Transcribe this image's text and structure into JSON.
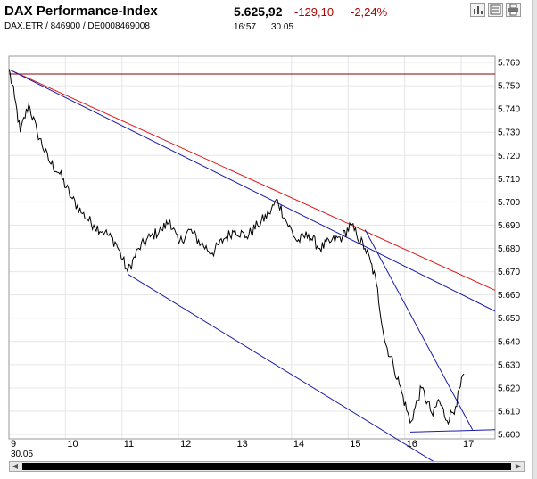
{
  "header": {
    "title": "DAX Performance-Index",
    "subline": "DAX.ETR  /  846900  /  DE0008469008",
    "price": "5.625,92",
    "change": "-129,10",
    "change_pct": "-2,24%",
    "time": "16:57",
    "date": "30.05"
  },
  "toolbar": {
    "icons": [
      "bar-chart-icon",
      "news-icon",
      "print-icon"
    ]
  },
  "colors": {
    "line": "#000000",
    "trend_blue": "#1a1aa8",
    "trend_red": "#e01818",
    "resistance": "#8b0000",
    "negative": "#b00000"
  },
  "chart_data": {
    "type": "line",
    "x_ticks": [
      "9",
      "10",
      "11",
      "12",
      "13",
      "14",
      "15",
      "16",
      "17"
    ],
    "x_sublabel": "30.05",
    "y_ticks": [
      "5.760",
      "5.750",
      "5.740",
      "5.730",
      "5.720",
      "5.710",
      "5.700",
      "5.690",
      "5.680",
      "5.670",
      "5.660",
      "5.650",
      "5.640",
      "5.630",
      "5.620",
      "5.610",
      "5.600"
    ],
    "ylim": [
      5600,
      5760
    ],
    "xlim": [
      9,
      17.6
    ],
    "grid": true,
    "series_keypoints": [
      [
        9.0,
        5757
      ],
      [
        9.1,
        5745
      ],
      [
        9.2,
        5730
      ],
      [
        9.35,
        5742
      ],
      [
        9.5,
        5730
      ],
      [
        9.7,
        5718
      ],
      [
        9.9,
        5712
      ],
      [
        10.1,
        5702
      ],
      [
        10.3,
        5695
      ],
      [
        10.5,
        5690
      ],
      [
        10.7,
        5687
      ],
      [
        10.9,
        5682
      ],
      [
        11.1,
        5670
      ],
      [
        11.3,
        5680
      ],
      [
        11.5,
        5685
      ],
      [
        11.7,
        5688
      ],
      [
        11.85,
        5692
      ],
      [
        12.0,
        5682
      ],
      [
        12.2,
        5688
      ],
      [
        12.4,
        5682
      ],
      [
        12.6,
        5678
      ],
      [
        12.8,
        5684
      ],
      [
        13.0,
        5688
      ],
      [
        13.2,
        5685
      ],
      [
        13.4,
        5690
      ],
      [
        13.6,
        5695
      ],
      [
        13.75,
        5701
      ],
      [
        13.9,
        5692
      ],
      [
        14.1,
        5683
      ],
      [
        14.3,
        5686
      ],
      [
        14.5,
        5680
      ],
      [
        14.7,
        5683
      ],
      [
        14.9,
        5685
      ],
      [
        15.05,
        5690
      ],
      [
        15.15,
        5686
      ],
      [
        15.3,
        5680
      ],
      [
        15.4,
        5674
      ],
      [
        15.5,
        5665
      ],
      [
        15.65,
        5640
      ],
      [
        15.8,
        5630
      ],
      [
        15.95,
        5618
      ],
      [
        16.1,
        5605
      ],
      [
        16.3,
        5620
      ],
      [
        16.5,
        5608
      ],
      [
        16.6,
        5615
      ],
      [
        16.75,
        5606
      ],
      [
        16.9,
        5612
      ],
      [
        17.05,
        5626
      ]
    ],
    "trend_lines": [
      {
        "color": "resistance",
        "from": [
          9.0,
          5755
        ],
        "to": [
          17.6,
          5755
        ]
      },
      {
        "color": "trend_red",
        "from": [
          9.0,
          5757
        ],
        "to": [
          17.6,
          5662
        ]
      },
      {
        "color": "trend_blue",
        "from": [
          9.0,
          5757
        ],
        "to": [
          17.6,
          5653
        ]
      },
      {
        "color": "trend_blue",
        "from": [
          11.1,
          5669
        ],
        "to": [
          16.8,
          5584
        ]
      },
      {
        "color": "trend_blue",
        "from": [
          15.3,
          5688
        ],
        "to": [
          17.2,
          5602
        ]
      },
      {
        "color": "trend_blue",
        "from": [
          16.1,
          5601
        ],
        "to": [
          17.6,
          5602
        ]
      }
    ]
  }
}
